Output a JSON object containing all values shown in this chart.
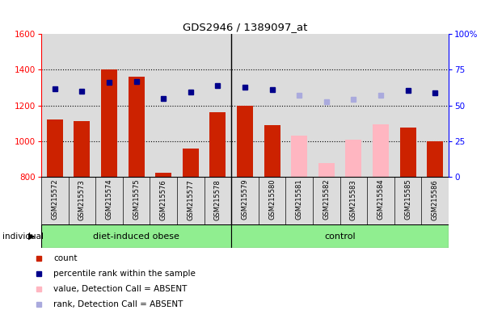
{
  "title": "GDS2946 / 1389097_at",
  "samples": [
    "GSM215572",
    "GSM215573",
    "GSM215574",
    "GSM215575",
    "GSM215576",
    "GSM215577",
    "GSM215578",
    "GSM215579",
    "GSM215580",
    "GSM215581",
    "GSM215582",
    "GSM215583",
    "GSM215584",
    "GSM215585",
    "GSM215586"
  ],
  "bar_values": [
    1120,
    1110,
    1400,
    1360,
    820,
    960,
    1160,
    1200,
    1090,
    null,
    null,
    null,
    null,
    1075,
    1000
  ],
  "absent_values": [
    null,
    null,
    null,
    null,
    null,
    null,
    null,
    null,
    null,
    1030,
    875,
    1010,
    1095,
    null,
    null
  ],
  "rank_values": [
    1295,
    1280,
    1330,
    1335,
    1240,
    1275,
    1310,
    1300,
    1290,
    null,
    null,
    null,
    null,
    1285,
    1270
  ],
  "absent_ranks": [
    null,
    null,
    null,
    null,
    null,
    null,
    null,
    null,
    null,
    1255,
    1220,
    1235,
    1255,
    null,
    null
  ],
  "bar_bottom": 800,
  "ylim_left": [
    800,
    1600
  ],
  "ylim_right": [
    0,
    100
  ],
  "bar_color_present": "#CC2200",
  "bar_color_absent": "#FFB6C1",
  "rank_color_present": "#00008B",
  "rank_color_absent": "#AAAADD",
  "bg_color": "#DCDCDC",
  "plot_bg": "#FFFFFF",
  "group_bg": "#90EE90",
  "legend_items": [
    "count",
    "percentile rank within the sample",
    "value, Detection Call = ABSENT",
    "rank, Detection Call = ABSENT"
  ],
  "legend_colors": [
    "#CC2200",
    "#00008B",
    "#FFB6C1",
    "#AAAADD"
  ],
  "n_obese": 7,
  "n_control": 8,
  "group_sep": 6.5
}
